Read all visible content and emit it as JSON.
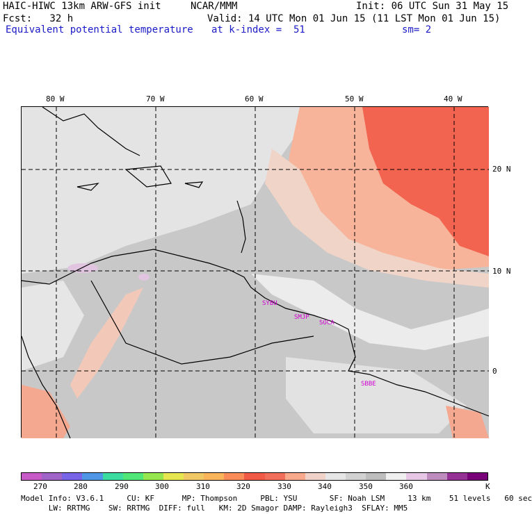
{
  "header": {
    "model": "HAIC-HIWC 13km ARW-GFS init",
    "org": "NCAR/MMM",
    "init": "Init: 06 UTC Sun 31 May 15",
    "fcst": "Fcst:   32 h",
    "valid": "Valid: 14 UTC Mon 01 Jun 15 (11 LST Mon 01 Jun 15)",
    "field": "Equivalent potential temperature",
    "level": "at k-index =  51",
    "smooth": "sm= 2"
  },
  "axes": {
    "lon_labels": [
      "80 W",
      "70 W",
      "60 W",
      "50 W",
      "40 W"
    ],
    "lat_labels": [
      "20 N",
      "10 N",
      "0"
    ]
  },
  "stations": [
    "SYBU",
    "SMJP",
    "SOCA",
    "SBBE"
  ],
  "colorbar": {
    "labels": [
      "270",
      "280",
      "290",
      "300",
      "310",
      "320",
      "330",
      "340",
      "350",
      "360"
    ],
    "unit": "K",
    "colors": [
      "#c85ac8",
      "#a064c8",
      "#7864e6",
      "#5096e6",
      "#3cdca0",
      "#50e678",
      "#96e650",
      "#e6e650",
      "#f0c864",
      "#fab45a",
      "#fa8c5a",
      "#f05a46",
      "#f06e5a",
      "#faaa8c",
      "#f0d2c8",
      "#e6e6e6",
      "#d2d2d2",
      "#bebebe",
      "#f0f0f0",
      "#e6c8e6",
      "#be8cbe",
      "#963296",
      "#780078"
    ]
  },
  "footer": {
    "line1": "Model Info: V3.6.1     CU: KF      MP: Thompson     PBL: YSU       SF: Noah LSM     13 km    51 levels   60 sec",
    "line2": "      LW: RRTMG    SW: RRTMG  DIFF: full   KM: 2D Smagor DAMP: Rayleigh3  SFLAY: MM5"
  }
}
